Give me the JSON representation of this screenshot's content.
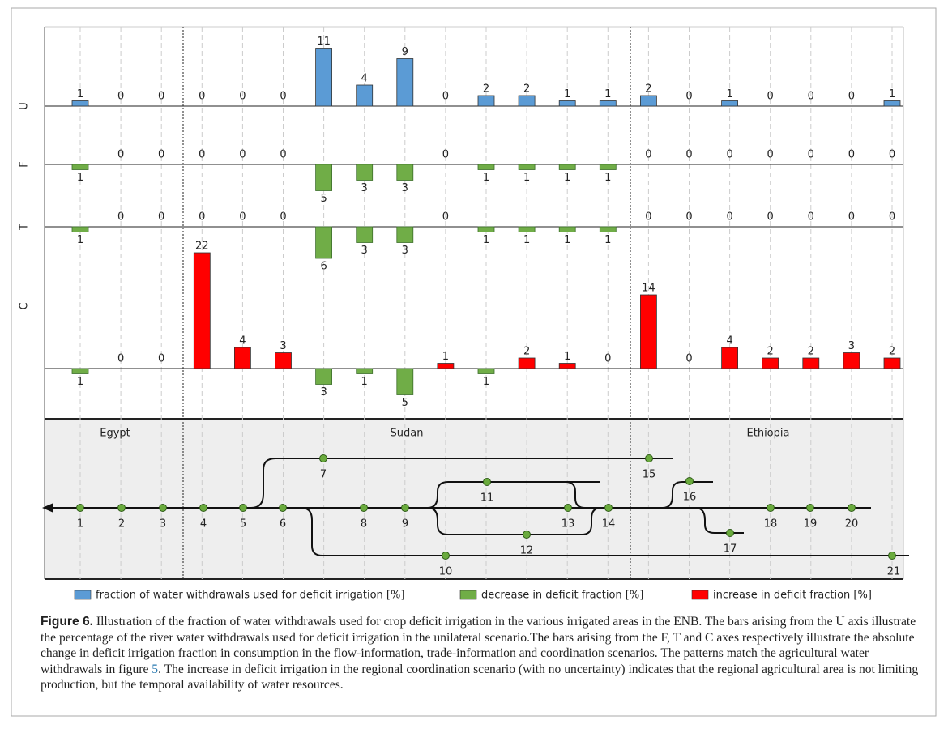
{
  "figure": {
    "rows": [
      {
        "label": "U",
        "values": [
          1,
          0,
          0,
          0,
          0,
          0,
          11,
          4,
          9,
          0,
          2,
          2,
          1,
          1,
          2,
          0,
          1,
          0,
          0,
          0,
          1
        ]
      },
      {
        "label": "F",
        "values": [
          -1,
          0,
          0,
          0,
          0,
          0,
          -5,
          -3,
          -3,
          0,
          -1,
          -1,
          -1,
          -1,
          0,
          0,
          0,
          0,
          0,
          0,
          0
        ],
        "value_labels": [
          "1",
          "0",
          "0",
          "0",
          "0",
          "0",
          "5",
          "3",
          "3",
          "0",
          "1",
          "1",
          "1",
          "1",
          "0",
          "0",
          "0",
          "0",
          "0",
          "0",
          "0"
        ]
      },
      {
        "label": "T",
        "values": [
          -1,
          0,
          0,
          0,
          0,
          0,
          -6,
          -3,
          -3,
          0,
          -1,
          -1,
          -1,
          -1,
          0,
          0,
          0,
          0,
          0,
          0,
          0
        ],
        "value_labels": [
          "1",
          "0",
          "0",
          "0",
          "0",
          "0",
          "6",
          "3",
          "3",
          "0",
          "1",
          "1",
          "1",
          "1",
          "0",
          "0",
          "0",
          "0",
          "0",
          "0",
          "0"
        ]
      },
      {
        "label": "C",
        "values": [
          -1,
          0,
          0,
          22,
          4,
          3,
          -3,
          -1,
          -5,
          1,
          -1,
          2,
          1,
          0,
          14,
          0,
          4,
          2,
          2,
          3,
          2
        ],
        "value_labels": [
          "1",
          "0",
          "0",
          "22",
          "4",
          "3",
          "3",
          "1",
          "5",
          "1",
          "1",
          "2",
          "1",
          "0",
          "14",
          "0",
          "4",
          "2",
          "2",
          "3",
          "2"
        ]
      }
    ],
    "regions": [
      "Egypt",
      "Sudan",
      "Ethiopia"
    ],
    "nodes": [
      "1",
      "2",
      "3",
      "4",
      "5",
      "6",
      "7",
      "8",
      "9",
      "10",
      "11",
      "12",
      "13",
      "14",
      "15",
      "16",
      "17",
      "18",
      "19",
      "20",
      "21"
    ],
    "legend": [
      {
        "name": "fraction of water withdrawals used for deficit irrigation [%]",
        "color": "#5b9bd5"
      },
      {
        "name": "decrease in deficit fraction [%]",
        "color": "#70ad47"
      },
      {
        "name": "increase in deficit fraction [%]",
        "color": "#ff0000"
      }
    ]
  },
  "caption": {
    "label": "Figure 6.",
    "text_before": "Illustration of the fraction of water withdrawals used for crop deficit irrigation in the various irrigated areas in the ENB. The bars arising from the U axis illustrate the percentage of the river water withdrawals used for deficit irrigation in the unilateral scenario.The bars arising from the F, T and C axes respectively illustrate the absolute change in deficit irrigation fraction in consumption in the flow-information, trade-information and coordination scenarios. The patterns match the agricultural water withdrawals in figure",
    "link": "5",
    "text_after": ". The increase in deficit irrigation in the regional coordination scenario (with no uncertainty) indicates that the regional agricultural area is not limiting production, but the temporal availability of water resources."
  }
}
